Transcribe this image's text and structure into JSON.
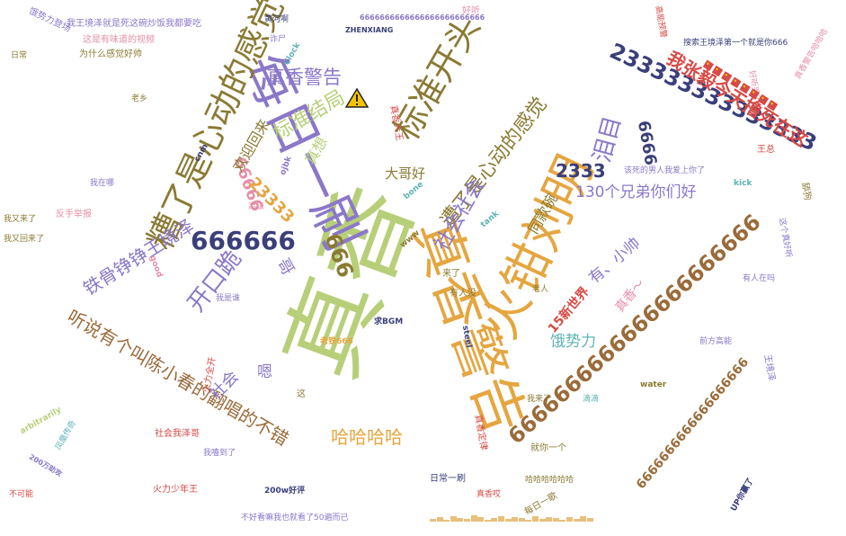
{
  "palette": {
    "green": "#b8cf7a",
    "gold": "#e5a640",
    "purple": "#8b77c9",
    "olive": "#8a7a33",
    "navy": "#3a3f7a",
    "red": "#d64b46",
    "pink": "#e58fa8",
    "teal": "#5fb3b3",
    "brown": "#9a6b3a"
  },
  "words": [
    {
      "t": "真香",
      "c": "green"
    },
    {
      "t": "真香警告",
      "c": "gold"
    },
    {
      "t": "火钳刘明",
      "c": "gold"
    },
    {
      "t": "每日一刷",
      "c": "purple"
    },
    {
      "t": "糟了是心动的感觉",
      "c": "olive"
    },
    {
      "t": "标准开头",
      "c": "olive"
    },
    {
      "t": "666666",
      "c": "navy"
    },
    {
      "t": "233333333333333",
      "c": "navy"
    },
    {
      "t": "6666666666666666666666",
      "c": "brown"
    },
    {
      "t": "6666666666666666666",
      "c": "brown"
    },
    {
      "t": "遭了是心动的感觉",
      "c": "olive"
    },
    {
      "t": "真香警告",
      "c": "purple"
    },
    {
      "t": "标准结局",
      "c": "green"
    },
    {
      "t": "开口跪",
      "c": "purple"
    },
    {
      "t": "铁骨铮铮王境泽",
      "c": "purple"
    },
    {
      "t": "听说有个叫陈小春的翻唱的不错",
      "c": "brown"
    },
    {
      "t": "我张毅今天撸死在这",
      "c": "red"
    },
    {
      "t": "130个兄弟你们好",
      "c": "purple"
    },
    {
      "t": "社会社会",
      "c": "purple"
    },
    {
      "t": "哈哈哈哈",
      "c": "gold"
    },
    {
      "t": "泪目",
      "c": "purple"
    },
    {
      "t": "2333",
      "c": "navy"
    },
    {
      "t": "6666",
      "c": "navy"
    },
    {
      "t": "666",
      "c": "olive"
    },
    {
      "t": "66666",
      "c": "pink"
    },
    {
      "t": "23333",
      "c": "gold"
    },
    {
      "t": "欢迎回来",
      "c": "olive"
    },
    {
      "t": "大哥好",
      "c": "olive"
    },
    {
      "t": "真想",
      "c": "green"
    },
    {
      "t": "同款碗",
      "c": "olive"
    },
    {
      "t": "有、小帅",
      "c": "purple"
    },
    {
      "t": "饿势力",
      "c": "teal"
    },
    {
      "t": "社会",
      "c": "purple"
    },
    {
      "t": "哥",
      "c": "purple"
    },
    {
      "t": "嗯",
      "c": "purple"
    },
    {
      "t": "15新世界",
      "c": "red"
    },
    {
      "t": "真香～",
      "c": "pink"
    },
    {
      "t": "该死的男人我爱上你了",
      "c": "purple"
    },
    {
      "t": "饿势力登场",
      "c": "purple"
    },
    {
      "t": "我王境泽就是死这碗炒饭我都要吃",
      "c": "purple"
    },
    {
      "t": "这是有味道的视频",
      "c": "pink"
    },
    {
      "t": "为什么感觉好帅",
      "c": "olive"
    },
    {
      "t": "搜索王境泽第一个就是你666",
      "c": "navy"
    },
    {
      "t": "求BGM",
      "c": "navy"
    },
    {
      "t": "不好看嘛我也就看了50遍而已",
      "c": "purple"
    },
    {
      "t": "日常一刷",
      "c": "navy"
    },
    {
      "t": "每日一歌",
      "c": "olive"
    },
    {
      "t": "真香哎",
      "c": "red"
    },
    {
      "t": "UP你赢了",
      "c": "navy"
    },
    {
      "t": "200w好评",
      "c": "navy"
    },
    {
      "t": "200万助攻",
      "c": "purple"
    },
    {
      "t": "真香大王",
      "c": "red"
    },
    {
      "t": "真香定律",
      "c": "red"
    },
    {
      "t": "老人",
      "c": "olive"
    },
    {
      "t": "有人没",
      "c": "olive"
    },
    {
      "t": "这",
      "c": "olive"
    },
    {
      "t": "来了",
      "c": "olive"
    },
    {
      "t": "好听",
      "c": "pink"
    },
    {
      "t": "ZHENXIANG",
      "c": "navy"
    },
    {
      "t": "6666666666666666666666666",
      "c": "purple"
    },
    {
      "t": "诈尸",
      "c": "purple"
    },
    {
      "t": "黄河啊",
      "c": "navy"
    },
    {
      "t": "火力少年王",
      "c": "red"
    },
    {
      "t": "就你一个",
      "c": "olive"
    },
    {
      "t": "凤凰传奇",
      "c": "teal"
    },
    {
      "t": "反手举报",
      "c": "pink"
    },
    {
      "t": "我又回来了",
      "c": "olive"
    },
    {
      "t": "我又来了",
      "c": "olive"
    },
    {
      "t": "社会我泽哥",
      "c": "red"
    },
    {
      "t": "我嗑到了",
      "c": "purple"
    },
    {
      "t": "日常",
      "c": "olive"
    },
    {
      "t": "王境泽",
      "c": "purple"
    },
    {
      "t": "王总",
      "c": "red"
    },
    {
      "t": "高级",
      "c": "pink"
    },
    {
      "t": "舔狗",
      "c": "olive"
    },
    {
      "t": "火力全开",
      "c": "red"
    },
    {
      "t": "这个真好听",
      "c": "purple"
    },
    {
      "t": "前方高能",
      "c": "purple"
    },
    {
      "t": "高能预警",
      "c": "red"
    },
    {
      "t": "好听哭了",
      "c": "pink"
    },
    {
      "t": "哈哈哈哈哈哈",
      "c": "olive"
    },
    {
      "t": "不可能",
      "c": "red"
    },
    {
      "t": "有人在吗",
      "c": "purple"
    },
    {
      "t": "真香警告哈哈哈",
      "c": "pink"
    },
    {
      "t": "我来了",
      "c": "olive"
    },
    {
      "t": "我是谁",
      "c": "purple"
    },
    {
      "t": "我在哪",
      "c": "purple"
    },
    {
      "t": "老乡",
      "c": "olive"
    },
    {
      "t": "滴滴",
      "c": "teal"
    },
    {
      "t": "老铁666",
      "c": "gold"
    },
    {
      "t": "good",
      "c": "pink"
    },
    {
      "t": "steel",
      "c": "navy"
    },
    {
      "t": "water",
      "c": "olive"
    },
    {
      "t": "kick",
      "c": "teal"
    },
    {
      "t": "arbitrarily",
      "c": "green"
    },
    {
      "t": "bone",
      "c": "teal"
    },
    {
      "t": "tank",
      "c": "teal"
    },
    {
      "t": "Clock",
      "c": "teal"
    },
    {
      "t": "www",
      "c": "olive"
    },
    {
      "t": "ojbk",
      "c": "purple"
    },
    {
      "t": "cnm",
      "c": "navy"
    }
  ]
}
